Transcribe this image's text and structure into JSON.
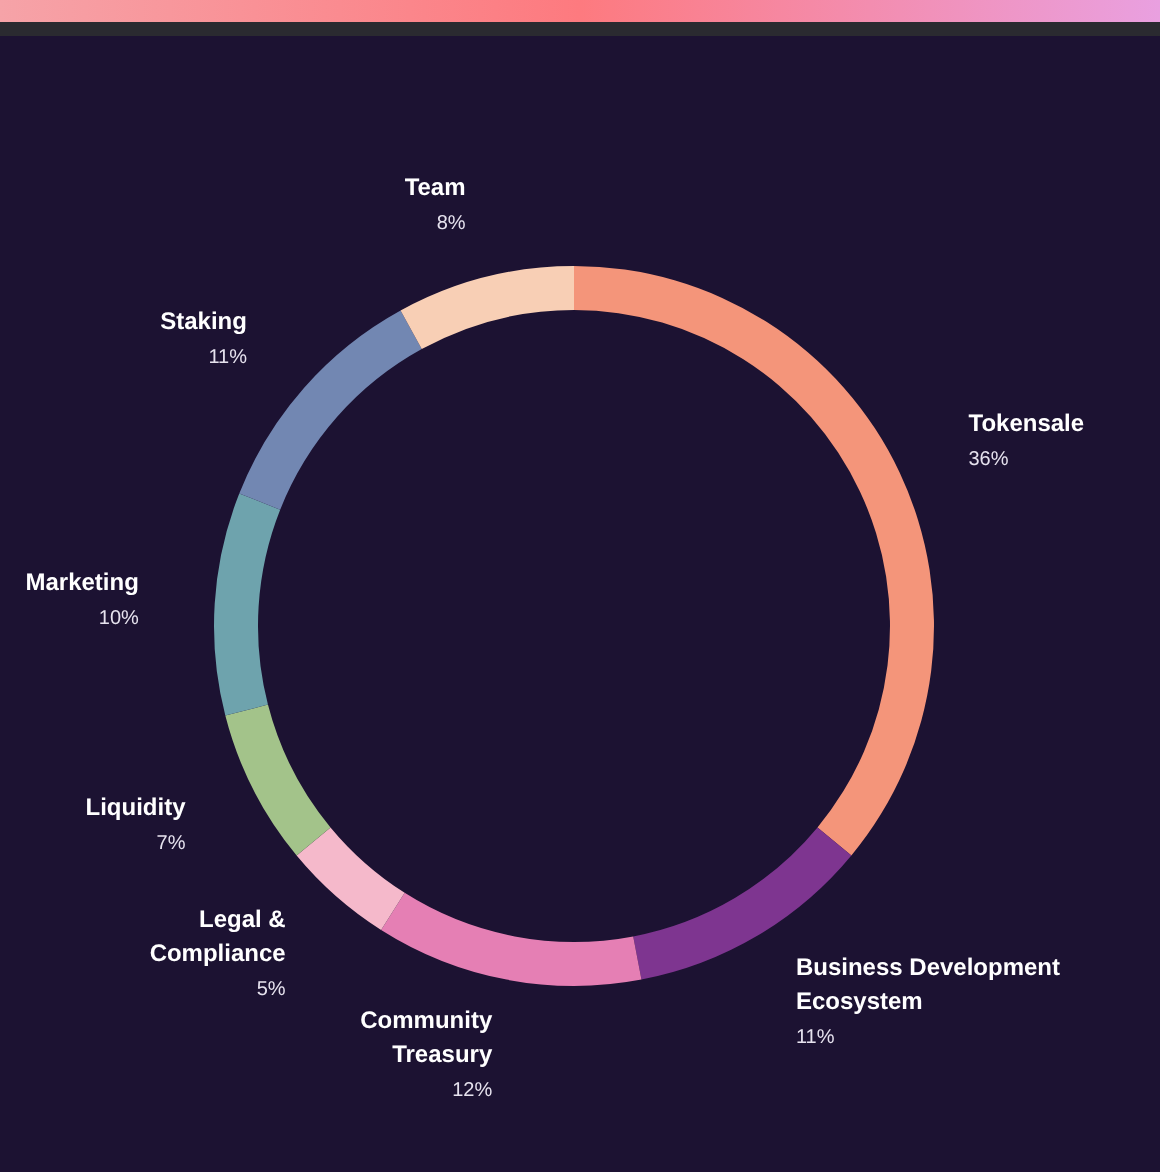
{
  "chart_data": {
    "type": "donut",
    "categories": [
      "Tokensale",
      "Business Development Ecosystem",
      "Community Treasury",
      "Legal & Compliance",
      "Liquidity",
      "Marketing",
      "Staking",
      "Team"
    ],
    "values": [
      36,
      11,
      12,
      5,
      7,
      10,
      11,
      8
    ],
    "value_labels": [
      "36%",
      "11%",
      "12%",
      "5%",
      "7%",
      "10%",
      "11%",
      "8%"
    ],
    "colors": [
      "#f4957a",
      "#7e3590",
      "#e57fb4",
      "#f5b9cb",
      "#a3c38a",
      "#6ea3ad",
      "#7287b2",
      "#f8cfb5"
    ]
  }
}
